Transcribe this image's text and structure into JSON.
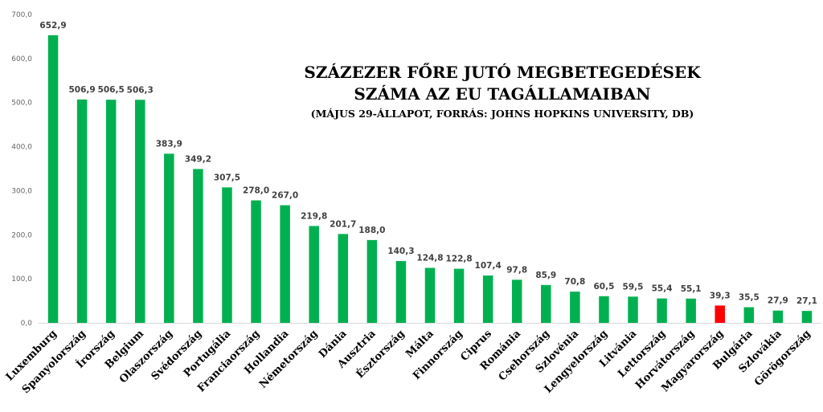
{
  "chart_data": {
    "type": "bar",
    "title": "SZÁZEZER FŐRE JUTÓ MEGBETEGEDÉSEK",
    "title_line2": "SZÁMA AZ EU TAGÁLLAMAIBAN",
    "subtitle": "(MÁJUS 29-ÁLLAPOT, FORRÁS: JOHNS HOPKINS UNIVERSITY, DB)",
    "categories": [
      "Luxemburg",
      "Spanyolország",
      "Írország",
      "Belgium",
      "Olaszország",
      "Svédország",
      "Portugália",
      "Franciaország",
      "Hollandia",
      "Németország",
      "Dánia",
      "Ausztria",
      "Észtország",
      "Málta",
      "Finnország",
      "Ciprus",
      "Románia",
      "Csehország",
      "Szlovénia",
      "Lengyelország",
      "Litvánia",
      "Lettország",
      "Horvátország",
      "Magyarország",
      "Bulgária",
      "Szlovákia",
      "Görögország"
    ],
    "values": [
      652.9,
      506.9,
      506.5,
      506.3,
      383.9,
      349.2,
      307.5,
      278.0,
      267.0,
      219.8,
      201.7,
      188.0,
      140.3,
      124.8,
      122.8,
      107.4,
      97.8,
      85.9,
      70.8,
      60.5,
      59.5,
      55.4,
      55.1,
      39.3,
      35.5,
      27.9,
      27.1
    ],
    "value_labels": [
      "652,9",
      "506,9",
      "506,5",
      "506,3",
      "383,9",
      "349,2",
      "307,5",
      "278,0",
      "267,0",
      "219,8",
      "201,7",
      "188,0",
      "140,3",
      "124,8",
      "122,8",
      "107,4",
      "97,8",
      "85,9",
      "70,8",
      "60,5",
      "59,5",
      "55,4",
      "55,1",
      "39,3",
      "35,5",
      "27,9",
      "27,1"
    ],
    "yticks": [
      "0,0",
      "100,0",
      "200,0",
      "300,0",
      "400,0",
      "500,0",
      "600,0",
      "700,0"
    ],
    "ylim": [
      0,
      700
    ],
    "grid": false,
    "legend": "none",
    "colors": {
      "bar": "#00b050",
      "highlight": "#ff0000",
      "highlight_category": "Magyarország"
    }
  }
}
